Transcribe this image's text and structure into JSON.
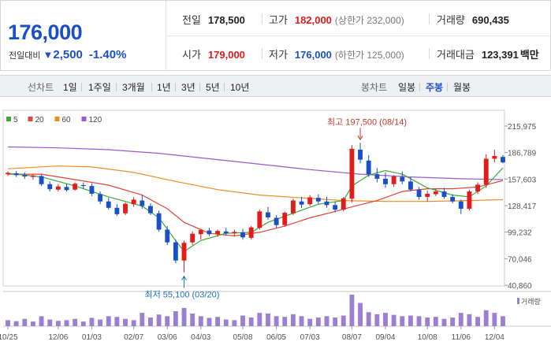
{
  "quote": {
    "current_price": "176,000",
    "change_label": "전일대비",
    "change_arrow": "▼",
    "change_value": "2,500",
    "change_pct": "-1.40%",
    "prev_close_label": "전일",
    "prev_close": "178,500",
    "high_label": "고가",
    "high": "182,000",
    "upper_limit": "(상한가 232,000)",
    "volume_label": "거래량",
    "volume": "690,435",
    "open_label": "시가",
    "open": "179,000",
    "low_label": "저가",
    "low": "176,000",
    "lower_limit": "(하한가 125,000)",
    "amount_label": "거래대금",
    "amount": "123,391",
    "amount_unit": "백만"
  },
  "toolbar": {
    "line_label": "선차트",
    "line_periods": [
      "1일",
      "1주일",
      "3개월",
      "1년",
      "3년",
      "5년",
      "10년"
    ],
    "candle_label": "봉차트",
    "candle_periods": [
      "일봉",
      "주봉",
      "월봉"
    ],
    "active_candle": "주봉"
  },
  "colors": {
    "up": "#e21b1b",
    "down": "#1a4fc7",
    "ma5": "#3aaa35",
    "ma20": "#e0453a",
    "ma60": "#ef8a1f",
    "ma120": "#9b59c9",
    "volume": "#9b7fd0"
  },
  "chart_data": {
    "type": "candlestick",
    "period": "weekly",
    "legend": [
      {
        "name": "5",
        "color": "#3aaa35"
      },
      {
        "name": "20",
        "color": "#e0453a"
      },
      {
        "name": "60",
        "color": "#ef8a1f"
      },
      {
        "name": "120",
        "color": "#9b59c9"
      }
    ],
    "y_ticks": [
      215975,
      186789,
      157603,
      128417,
      99232,
      70046,
      40860
    ],
    "y_tick_labels": [
      "215,975",
      "186,789",
      "157,603",
      "128,417",
      "99,232",
      "70,046",
      "40,860"
    ],
    "ylim": [
      40860,
      215975
    ],
    "x_tick_labels": [
      "10/25",
      "12/06",
      "01/03",
      "02/07",
      "03/06",
      "04/03",
      "05/08",
      "06/05",
      "07/03",
      "08/07",
      "09/04",
      "10/08",
      "11/06",
      "12/04"
    ],
    "x_tick_index": [
      0,
      6,
      10,
      15,
      19,
      23,
      28,
      32,
      36,
      41,
      45,
      50,
      54,
      58
    ],
    "annotations": {
      "high_label": "최고 197,500 (08/14)",
      "high_value": 197500,
      "high_index": 42,
      "low_label": "최저 55,100 (03/20)",
      "low_value": 55100,
      "low_index": 21
    },
    "volume_label": "거래량",
    "candles": [
      [
        163000,
        166000,
        161000,
        164500
      ],
      [
        164000,
        166500,
        160000,
        162000
      ],
      [
        162000,
        165000,
        158000,
        160500
      ],
      [
        160000,
        163000,
        157000,
        161500
      ],
      [
        161000,
        163500,
        150000,
        152000
      ],
      [
        152000,
        155000,
        144000,
        146500
      ],
      [
        146000,
        152000,
        144000,
        149500
      ],
      [
        149000,
        152500,
        144000,
        145500
      ],
      [
        146000,
        154000,
        145000,
        152500
      ],
      [
        151000,
        154000,
        147000,
        150000
      ],
      [
        150000,
        153000,
        139000,
        141500
      ],
      [
        141000,
        144000,
        130000,
        133000
      ],
      [
        133000,
        137000,
        124000,
        126000
      ],
      [
        126000,
        130000,
        117000,
        119000
      ],
      [
        120000,
        132000,
        118000,
        130500
      ],
      [
        130000,
        138000,
        127000,
        135000
      ],
      [
        134000,
        140000,
        125000,
        128000
      ],
      [
        128000,
        131000,
        118000,
        120000
      ],
      [
        120000,
        123000,
        100000,
        102000
      ],
      [
        102000,
        106000,
        85000,
        88000
      ],
      [
        88000,
        91000,
        65000,
        68000
      ],
      [
        68000,
        90000,
        55100,
        87500
      ],
      [
        88000,
        100000,
        85000,
        97500
      ],
      [
        97000,
        103000,
        91000,
        101500
      ],
      [
        101000,
        104000,
        95000,
        97000
      ],
      [
        97000,
        102000,
        94000,
        100500
      ],
      [
        100000,
        104000,
        96000,
        98000
      ],
      [
        98000,
        102000,
        95000,
        99500
      ],
      [
        99000,
        103000,
        91000,
        93500
      ],
      [
        93000,
        106000,
        91000,
        104500
      ],
      [
        104000,
        124000,
        102000,
        122000
      ],
      [
        121000,
        127000,
        113000,
        115500
      ],
      [
        115000,
        118000,
        104000,
        107000
      ],
      [
        107000,
        122000,
        105000,
        120500
      ],
      [
        120000,
        136000,
        118000,
        134000
      ],
      [
        133000,
        138000,
        126000,
        129500
      ],
      [
        130000,
        140000,
        128000,
        137500
      ],
      [
        137000,
        141000,
        130000,
        133000
      ],
      [
        133000,
        138000,
        126000,
        129000
      ],
      [
        129000,
        133000,
        121000,
        124000
      ],
      [
        124000,
        138000,
        122000,
        136500
      ],
      [
        136000,
        195000,
        132000,
        191000
      ],
      [
        190000,
        197500,
        175000,
        179000
      ],
      [
        178000,
        184000,
        160000,
        163000
      ],
      [
        163000,
        170000,
        154000,
        158000
      ],
      [
        158000,
        165000,
        148000,
        152000
      ],
      [
        152000,
        162000,
        149000,
        160500
      ],
      [
        160000,
        166000,
        152000,
        155000
      ],
      [
        155000,
        160000,
        144000,
        146000
      ],
      [
        146000,
        149000,
        135000,
        138000
      ],
      [
        138000,
        145000,
        133000,
        141500
      ],
      [
        141000,
        147000,
        139000,
        144000
      ],
      [
        144000,
        148000,
        136000,
        138000
      ],
      [
        138000,
        141000,
        131000,
        133000
      ],
      [
        133000,
        135000,
        119000,
        125000
      ],
      [
        125000,
        146000,
        123000,
        144000
      ],
      [
        144000,
        154000,
        141000,
        151500
      ],
      [
        151500,
        185000,
        148000,
        180000
      ],
      [
        180000,
        190000,
        176000,
        183000
      ],
      [
        182000,
        184000,
        175000,
        176000
      ]
    ],
    "ma5": [
      [
        0,
        164000
      ],
      [
        4,
        160000
      ],
      [
        8,
        150000
      ],
      [
        12,
        138000
      ],
      [
        16,
        128000
      ],
      [
        18,
        115000
      ],
      [
        20,
        90000
      ],
      [
        21,
        78000
      ],
      [
        23,
        90000
      ],
      [
        26,
        98000
      ],
      [
        29,
        99000
      ],
      [
        31,
        110000
      ],
      [
        34,
        120000
      ],
      [
        37,
        130000
      ],
      [
        40,
        134000
      ],
      [
        41,
        150000
      ],
      [
        43,
        162000
      ],
      [
        45,
        167000
      ],
      [
        47,
        163000
      ],
      [
        50,
        148000
      ],
      [
        53,
        140000
      ],
      [
        55,
        138000
      ],
      [
        57,
        150000
      ],
      [
        59,
        170000
      ]
    ],
    "ma20": [
      [
        0,
        163000
      ],
      [
        4,
        163000
      ],
      [
        8,
        157000
      ],
      [
        12,
        151000
      ],
      [
        16,
        140000
      ],
      [
        19,
        125000
      ],
      [
        21,
        110000
      ],
      [
        24,
        98000
      ],
      [
        27,
        95000
      ],
      [
        30,
        99000
      ],
      [
        33,
        106000
      ],
      [
        36,
        115000
      ],
      [
        39,
        122000
      ],
      [
        41,
        127000
      ],
      [
        44,
        134000
      ],
      [
        47,
        144000
      ],
      [
        50,
        147000
      ],
      [
        53,
        147000
      ],
      [
        56,
        149000
      ],
      [
        59,
        156000
      ]
    ],
    "ma60": [
      [
        0,
        169000
      ],
      [
        6,
        172000
      ],
      [
        10,
        171000
      ],
      [
        15,
        165000
      ],
      [
        20,
        155000
      ],
      [
        25,
        146000
      ],
      [
        30,
        140000
      ],
      [
        35,
        137000
      ],
      [
        40,
        134000
      ],
      [
        45,
        133000
      ],
      [
        50,
        133000
      ],
      [
        55,
        134000
      ],
      [
        59,
        135000
      ]
    ],
    "ma120": [
      [
        0,
        193000
      ],
      [
        6,
        192000
      ],
      [
        12,
        190000
      ],
      [
        18,
        186000
      ],
      [
        24,
        180000
      ],
      [
        30,
        174000
      ],
      [
        36,
        168000
      ],
      [
        42,
        163000
      ],
      [
        48,
        160000
      ],
      [
        54,
        158000
      ],
      [
        59,
        157000
      ]
    ],
    "volume": [
      18,
      15,
      22,
      14,
      30,
      20,
      16,
      18,
      22,
      14,
      25,
      20,
      30,
      28,
      22,
      18,
      40,
      26,
      35,
      30,
      45,
      55,
      38,
      30,
      25,
      28,
      20,
      18,
      32,
      26,
      40,
      38,
      30,
      28,
      36,
      30,
      22,
      26,
      30,
      26,
      32,
      95,
      70,
      42,
      36,
      40,
      34,
      30,
      32,
      30,
      26,
      28,
      22,
      26,
      40,
      36,
      28,
      48,
      40,
      30
    ]
  }
}
